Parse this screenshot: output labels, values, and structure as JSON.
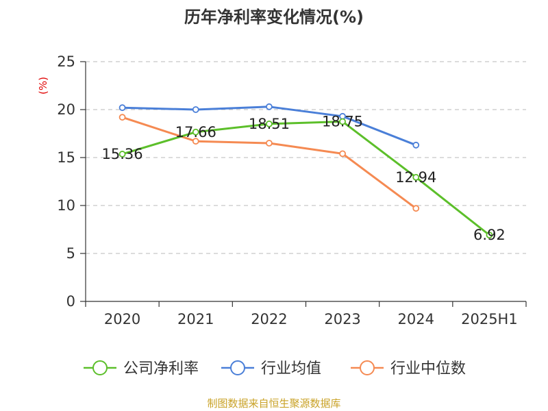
{
  "chart_data": {
    "type": "line",
    "title": "历年净利率变化情况(%)",
    "unit_label": "(%)",
    "categories": [
      "2020",
      "2021",
      "2022",
      "2023",
      "2024",
      "2025H1"
    ],
    "ylim": [
      0,
      25
    ],
    "yticks": [
      0,
      5,
      10,
      15,
      20,
      25
    ],
    "grid": true,
    "legend_position": "bottom",
    "series": [
      {
        "name": "公司净利率",
        "color": "#5cbf2a",
        "values": [
          15.36,
          17.66,
          18.51,
          18.75,
          12.94,
          6.92
        ],
        "data_labels": [
          "15.36",
          "17.66",
          "18.51",
          "18.75",
          "12.94",
          "6.92"
        ]
      },
      {
        "name": "行业均值",
        "color": "#4a7fd8",
        "values": [
          20.2,
          20.0,
          20.3,
          19.3,
          16.3,
          null
        ]
      },
      {
        "name": "行业中位数",
        "color": "#f58a52",
        "values": [
          19.2,
          16.7,
          16.5,
          15.4,
          9.7,
          null
        ]
      }
    ]
  },
  "footer": {
    "source": "制图数据来自恒生聚源数据库"
  }
}
